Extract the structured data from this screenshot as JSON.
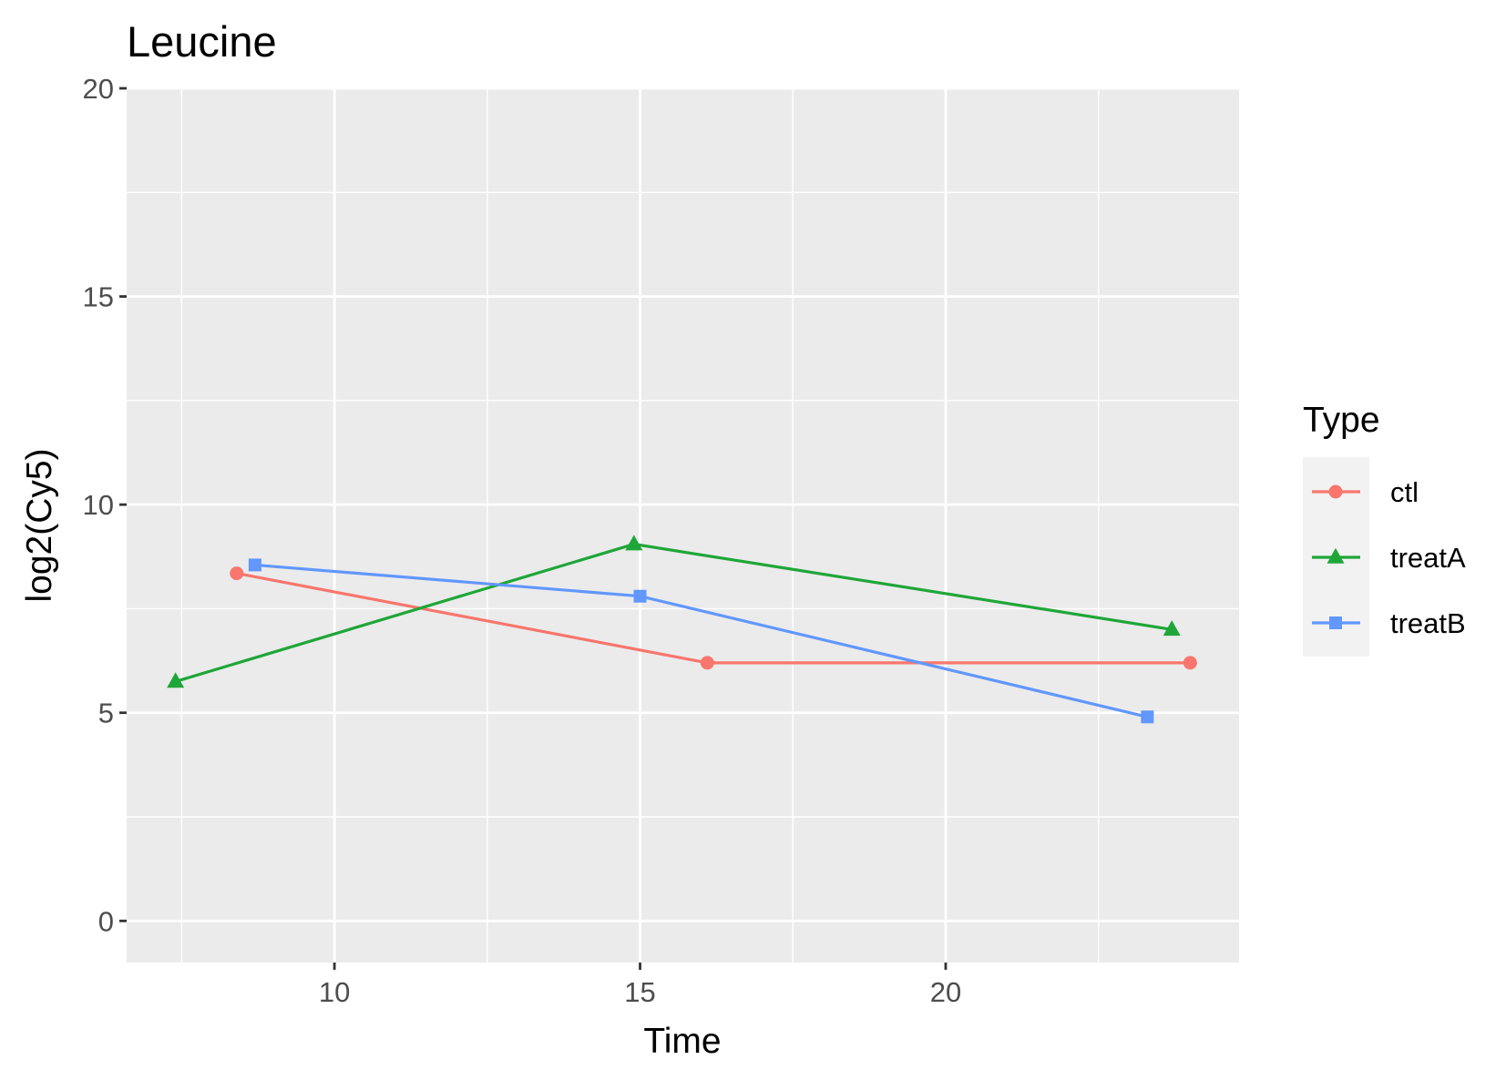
{
  "chart_data": {
    "type": "line",
    "title": "Leucine",
    "xlabel": "Time",
    "ylabel": "log2(Cy5)",
    "xlim": [
      6.6,
      24.8
    ],
    "ylim": [
      -1.0,
      20.0
    ],
    "x_ticks": [
      10,
      15,
      20
    ],
    "y_ticks": [
      0,
      5,
      10,
      15,
      20
    ],
    "x_minor": [
      7.5,
      12.5,
      17.5,
      22.5
    ],
    "y_minor": [
      2.5,
      7.5,
      12.5,
      17.5
    ],
    "grid": true,
    "legend": {
      "title": "Type",
      "position": "right"
    },
    "series": [
      {
        "name": "ctl",
        "color": "#F8766D",
        "marker": "circle",
        "x": [
          8.4,
          16.1,
          24.0
        ],
        "y": [
          8.35,
          6.2,
          6.2
        ]
      },
      {
        "name": "treatA",
        "color": "#1FA638",
        "marker": "triangle",
        "x": [
          7.4,
          14.9,
          23.7
        ],
        "y": [
          5.75,
          9.05,
          7.0
        ]
      },
      {
        "name": "treatB",
        "color": "#6197FF",
        "marker": "square",
        "x": [
          8.7,
          15.0,
          23.3
        ],
        "y": [
          8.55,
          7.8,
          4.9
        ]
      }
    ]
  }
}
